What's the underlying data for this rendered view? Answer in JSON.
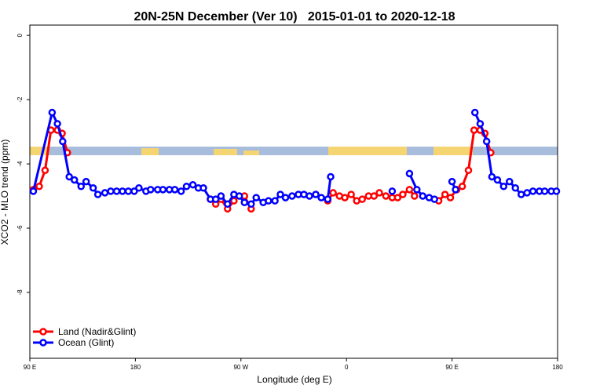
{
  "chart_data": {
    "type": "line",
    "title": "20N-25N December (Ver 10)   2015-01-01 to 2020-12-18",
    "x_label": "Longitude (deg E)",
    "y_label": "XCO2 - MLO trend (ppm)",
    "xlim": [
      90,
      540
    ],
    "xticks": [
      {
        "value": 90,
        "label": "90 E"
      },
      {
        "value": 180,
        "label": "180"
      },
      {
        "value": 270,
        "label": "90 W"
      },
      {
        "value": 360,
        "label": "0"
      },
      {
        "value": 450,
        "label": "90 E"
      },
      {
        "value": 540,
        "label": "180"
      }
    ],
    "ylim": [
      -10.05,
      0.32
    ],
    "yticks": [
      0,
      -2,
      -4,
      -6,
      -8
    ],
    "legend": "bottom-left",
    "series": [
      {
        "name": "Land (Nadir&Glint)",
        "color": "#ff0000",
        "x": [
          93,
          98,
          103,
          108,
          113.5,
          117.5,
          122,
          180,
          244,
          248.5,
          253,
          258.6,
          264,
          268,
          273,
          278.7,
          300,
          344,
          348.6,
          354,
          358.6,
          364,
          368.7,
          373.4,
          378.8,
          383.5,
          388,
          393.6,
          399,
          403.6,
          408,
          413.7,
          418,
          428,
          438.6,
          444,
          448.6,
          454,
          458.7,
          464,
          468.8,
          474,
          478,
          483
        ],
        "values": [
          -4.8,
          -4.7,
          -4.2,
          -2.95,
          -2.95,
          -3.05,
          -3.65,
          null,
          -5.1,
          -5.25,
          -5.1,
          -5.4,
          -5.15,
          null,
          -5.0,
          -5.4,
          null,
          -5.15,
          -4.9,
          -5.0,
          -5.05,
          -4.95,
          -5.15,
          -5.1,
          -5.0,
          -5.0,
          -4.9,
          -5.0,
          -5.05,
          -5.05,
          -4.95,
          -4.8,
          -5.0,
          null,
          -5.15,
          -4.95,
          -5.05,
          -4.8,
          -4.7,
          -4.2,
          -2.95,
          -2.95,
          -3.05,
          -3.65
        ]
      },
      {
        "name": "Ocean (Glint)",
        "color": "#0000ff",
        "x": [
          93,
          109,
          113.5,
          118,
          123.6,
          128,
          133.7,
          138,
          144,
          148,
          154,
          159,
          164,
          169,
          174,
          179,
          183,
          189,
          193,
          199,
          203.5,
          209,
          213.6,
          219,
          223.6,
          229,
          233.7,
          238,
          244,
          248.5,
          253,
          258.6,
          264,
          268.6,
          273,
          278.7,
          283,
          289,
          293.5,
          299,
          303.6,
          308,
          313.6,
          319,
          323.7,
          328.4,
          333.8,
          338.5,
          344,
          346.5,
          370,
          399,
          405,
          413.7,
          420,
          425,
          430.5,
          435,
          440,
          450,
          453,
          460,
          469.5,
          474,
          479.5,
          484,
          488.7,
          494,
          499,
          504,
          509,
          514,
          519,
          524.5,
          529,
          534.6,
          539
        ],
        "values": [
          -4.85,
          -2.4,
          -2.75,
          -3.3,
          -4.4,
          -4.5,
          -4.7,
          -4.55,
          -4.75,
          -4.95,
          -4.9,
          -4.85,
          -4.85,
          -4.85,
          -4.85,
          -4.85,
          -4.75,
          -4.85,
          -4.8,
          -4.8,
          -4.8,
          -4.8,
          -4.8,
          -4.85,
          -4.7,
          -4.65,
          -4.75,
          -4.75,
          -5.1,
          -5.1,
          -5.0,
          -5.25,
          -4.95,
          -5.0,
          -5.2,
          -5.25,
          -5.05,
          -5.2,
          -5.15,
          -5.15,
          -4.95,
          -5.05,
          -5.0,
          -4.95,
          -4.95,
          -5.0,
          -4.95,
          -5.05,
          -5.1,
          -4.4,
          null,
          -4.85,
          null,
          -4.3,
          -4.8,
          -5.0,
          -5.05,
          -5.1,
          null,
          -4.55,
          -4.8,
          null,
          -2.4,
          -2.75,
          -3.3,
          -4.4,
          -4.5,
          -4.7,
          -4.55,
          -4.75,
          -4.95,
          -4.9,
          -4.85,
          -4.85,
          -4.85,
          -4.85,
          -4.85
        ]
      }
    ]
  }
}
